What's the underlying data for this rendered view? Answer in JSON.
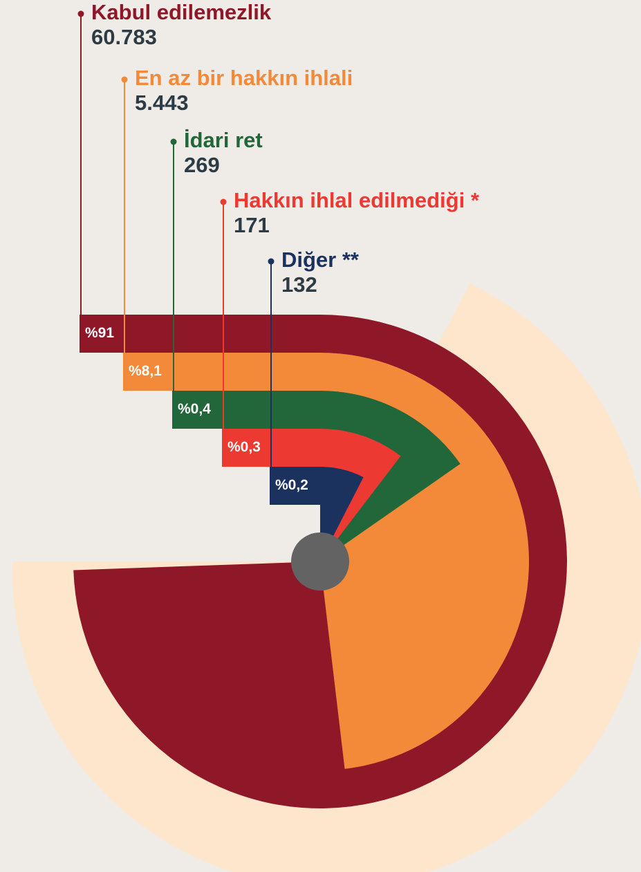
{
  "chart_data": {
    "type": "radial-bar",
    "categories": [
      "Kabul edilemezlik",
      "En az bir hakkın ihlali",
      "İdari ret",
      "Hakkın ihlal edilmediği *",
      "Diğer **"
    ],
    "values": [
      60783,
      5443,
      269,
      171,
      132
    ],
    "value_labels": [
      "60.783",
      "5.443",
      "269",
      "171",
      "132"
    ],
    "percentages": [
      91,
      8.1,
      0.4,
      0.3,
      0.2
    ],
    "percentage_labels": [
      "%91",
      "%8,1",
      "%0,4",
      "%0,3",
      "%0,2"
    ],
    "colors": [
      "#8f1828",
      "#f28a3a",
      "#22673a",
      "#ec3a33",
      "#1b325f"
    ],
    "log_scale": true
  }
}
